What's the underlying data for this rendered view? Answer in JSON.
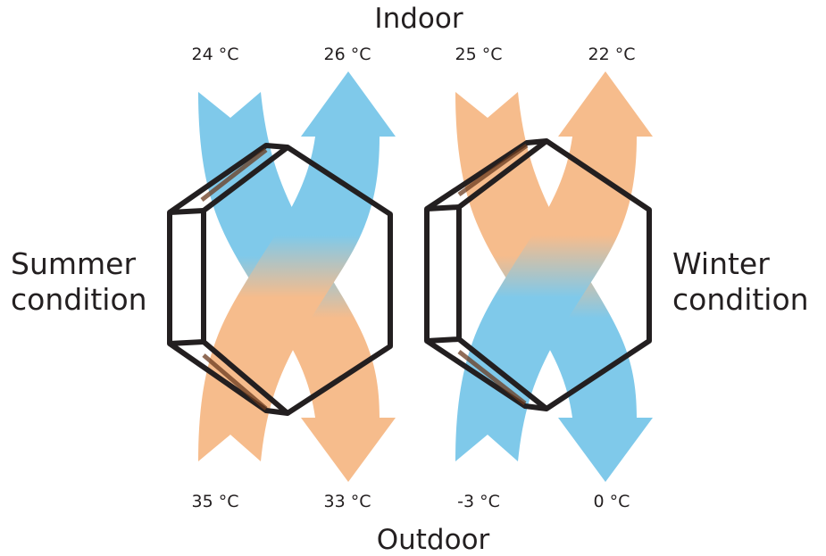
{
  "labels": {
    "top": "Indoor",
    "bottom": "Outdoor",
    "left_title": "Summer\ncondition",
    "right_title": "Winter\ncondition"
  },
  "summer": {
    "indoor_exhaust": "24 °C",
    "indoor_supply": "26 °C",
    "outdoor_intake": "35 °C",
    "outdoor_exhaust": "33 °C"
  },
  "winter": {
    "indoor_exhaust": "25 °C",
    "indoor_supply": "22 °C",
    "outdoor_intake": "-3 °C",
    "outdoor_exhaust": "0 °C"
  },
  "colors": {
    "cool_air": "#7fc9ea",
    "warm_air": "#f6bc8c",
    "outline": "#231f20",
    "background": "#ffffff"
  }
}
